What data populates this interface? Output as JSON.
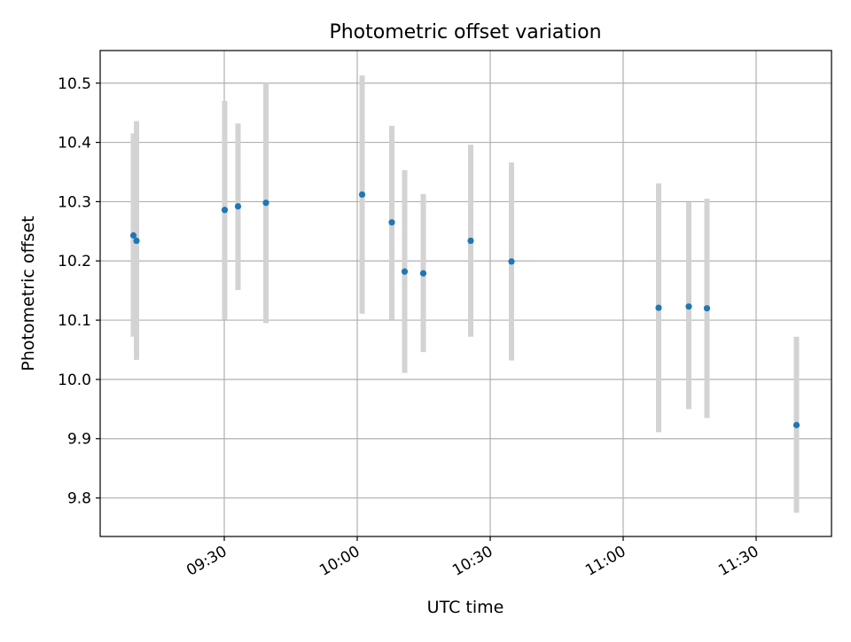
{
  "chart_data": {
    "type": "scatter",
    "title": "Photometric offset variation",
    "xlabel": "UTC time",
    "ylabel": "Photometric offset",
    "grid": true,
    "x_axis": {
      "kind": "time",
      "range": [
        "09:02",
        "11:47"
      ],
      "ticks": [
        "09:30",
        "10:00",
        "10:30",
        "11:00",
        "11:30"
      ]
    },
    "y_axis": {
      "range": [
        9.735,
        10.555
      ],
      "ticks": [
        9.8,
        9.9,
        10.0,
        10.1,
        10.2,
        10.3,
        10.4,
        10.5
      ],
      "tick_labels": [
        "9.8",
        "9.9",
        "10.0",
        "10.1",
        "10.2",
        "10.3",
        "10.4",
        "10.5"
      ]
    },
    "colors": {
      "marker": "#1f77b4",
      "errorbar": "#d3d3d3",
      "grid": "#b0b0b0"
    },
    "points": [
      {
        "time": "09:09:30",
        "y": 10.243,
        "y_low": 10.072,
        "y_high": 10.415
      },
      {
        "time": "09:10:12",
        "y": 10.234,
        "y_low": 10.033,
        "y_high": 10.436
      },
      {
        "time": "09:30:06",
        "y": 10.286,
        "y_low": 10.101,
        "y_high": 10.47
      },
      {
        "time": "09:33:06",
        "y": 10.292,
        "y_low": 10.151,
        "y_high": 10.432
      },
      {
        "time": "09:39:24",
        "y": 10.298,
        "y_low": 10.095,
        "y_high": 10.5
      },
      {
        "time": "10:01:06",
        "y": 10.312,
        "y_low": 10.111,
        "y_high": 10.513
      },
      {
        "time": "10:07:48",
        "y": 10.265,
        "y_low": 10.101,
        "y_high": 10.428
      },
      {
        "time": "10:10:42",
        "y": 10.182,
        "y_low": 10.011,
        "y_high": 10.353
      },
      {
        "time": "10:14:54",
        "y": 10.179,
        "y_low": 10.046,
        "y_high": 10.313
      },
      {
        "time": "10:25:36",
        "y": 10.234,
        "y_low": 10.072,
        "y_high": 10.396
      },
      {
        "time": "10:34:48",
        "y": 10.199,
        "y_low": 10.032,
        "y_high": 10.366
      },
      {
        "time": "11:08:00",
        "y": 10.121,
        "y_low": 9.911,
        "y_high": 10.331
      },
      {
        "time": "11:14:48",
        "y": 10.123,
        "y_low": 9.95,
        "y_high": 10.299
      },
      {
        "time": "11:18:54",
        "y": 10.12,
        "y_low": 9.935,
        "y_high": 10.305
      },
      {
        "time": "11:39:06",
        "y": 9.923,
        "y_low": 9.775,
        "y_high": 10.072
      }
    ]
  }
}
